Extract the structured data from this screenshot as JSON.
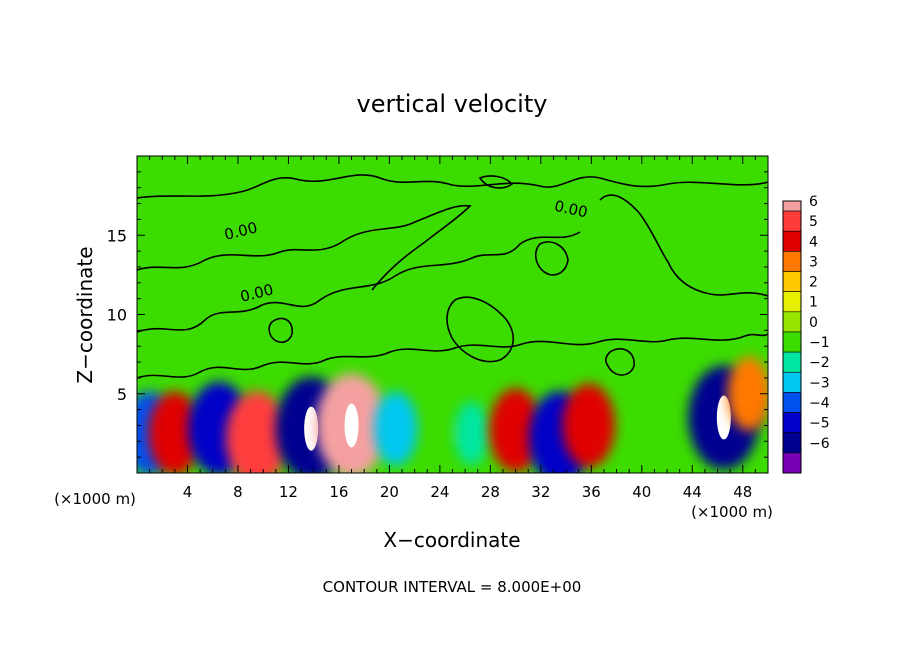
{
  "chart_data": {
    "type": "heatmap",
    "title": "vertical velocity",
    "xlabel": "X−coordinate",
    "ylabel": "Z−coordinate",
    "x_unit": "(×1000 m)",
    "y_unit": "(×1000 m)",
    "xlim": [
      0,
      50
    ],
    "ylim": [
      0,
      20
    ],
    "x_ticks": [
      4,
      8,
      12,
      16,
      20,
      24,
      28,
      32,
      36,
      40,
      44,
      48
    ],
    "x_tick_labels": [
      "4",
      "8",
      "12",
      "16",
      "20",
      "24",
      "28",
      "32",
      "36",
      "40",
      "44",
      "48"
    ],
    "y_ticks": [
      5,
      10,
      15
    ],
    "y_tick_labels": [
      "5",
      "10",
      "15"
    ],
    "colorbar": {
      "levels": [
        6,
        5,
        4,
        3,
        2,
        1,
        0,
        -1,
        -2,
        -3,
        -4,
        -5,
        -6
      ],
      "labels": [
        "6",
        "5",
        "4",
        "3",
        "2",
        "1",
        "0",
        "−1",
        "−2",
        "−3",
        "−4",
        "−5",
        "−6"
      ],
      "colors": [
        "#f4a0a0",
        "#ff3c3c",
        "#e00000",
        "#ff7800",
        "#ffc800",
        "#e6f000",
        "#96e600",
        "#3cdc00",
        "#00e6a0",
        "#00c8f0",
        "#0050f0",
        "#0000c8",
        "#000090",
        "#7800b4"
      ]
    },
    "contour_interval_text": "CONTOUR INTERVAL = 8.000E+00",
    "contour_labels": [
      "0.00",
      "0.00",
      "0.00"
    ],
    "field_features": [
      {
        "x": 1.0,
        "z": 2.5,
        "w": -4
      },
      {
        "x": 3.0,
        "z": 2.5,
        "w": 4
      },
      {
        "x": 6.5,
        "z": 2.8,
        "w": -5
      },
      {
        "x": 9.5,
        "z": 2.2,
        "w": 5
      },
      {
        "x": 13.8,
        "z": 2.8,
        "w": -6
      },
      {
        "x": 17.0,
        "z": 3.0,
        "w": 6
      },
      {
        "x": 20.5,
        "z": 2.8,
        "w": -3
      },
      {
        "x": 26.5,
        "z": 2.5,
        "w": -2
      },
      {
        "x": 30.0,
        "z": 2.7,
        "w": 4
      },
      {
        "x": 33.5,
        "z": 2.2,
        "w": -5
      },
      {
        "x": 35.8,
        "z": 3.0,
        "w": 4
      },
      {
        "x": 46.5,
        "z": 3.5,
        "w": -6
      },
      {
        "x": 48.5,
        "z": 5.0,
        "w": 3
      }
    ]
  }
}
